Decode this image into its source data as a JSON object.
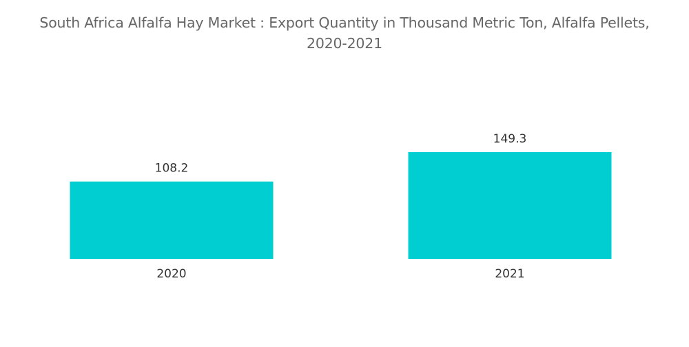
{
  "chart_data": {
    "type": "bar",
    "title_line1": "South Africa Alfalfa Hay Market : Export Quantity in Thousand Metric Ton, Alfalfa Pellets,",
    "title_line2": "2020-2021",
    "categories": [
      "2020",
      "2021"
    ],
    "values": [
      108.2,
      149.3
    ],
    "value_labels": [
      "108.2",
      "149.3"
    ],
    "xlabel": "",
    "ylabel": "",
    "ylim": [
      0,
      149.3
    ],
    "grid": false,
    "legend": "none",
    "bar_color": "#00CED1"
  }
}
